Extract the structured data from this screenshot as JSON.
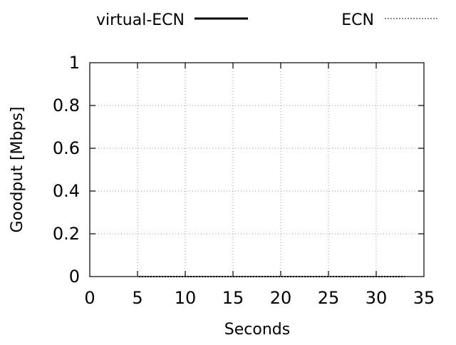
{
  "chart_data": {
    "type": "line",
    "title": "",
    "xlabel": "Seconds",
    "ylabel": "Goodput [Mbps]",
    "xlim": [
      0,
      35
    ],
    "ylim": [
      0,
      1
    ],
    "x_ticks": [
      "0",
      "5",
      "10",
      "15",
      "20",
      "25",
      "30",
      "35"
    ],
    "y_ticks": [
      "0",
      "0.2",
      "0.4",
      "0.6",
      "0.8",
      "1"
    ],
    "grid": true,
    "legend_position": "top",
    "series": [
      {
        "name": "virtual-ECN",
        "style": "solid",
        "color": "#000000",
        "points": [
          [
            5,
            0
          ],
          [
            33,
            0
          ]
        ]
      },
      {
        "name": "ECN",
        "style": "dotted",
        "color": "#888888",
        "points": [
          [
            5,
            0
          ],
          [
            33,
            0
          ]
        ]
      }
    ]
  }
}
